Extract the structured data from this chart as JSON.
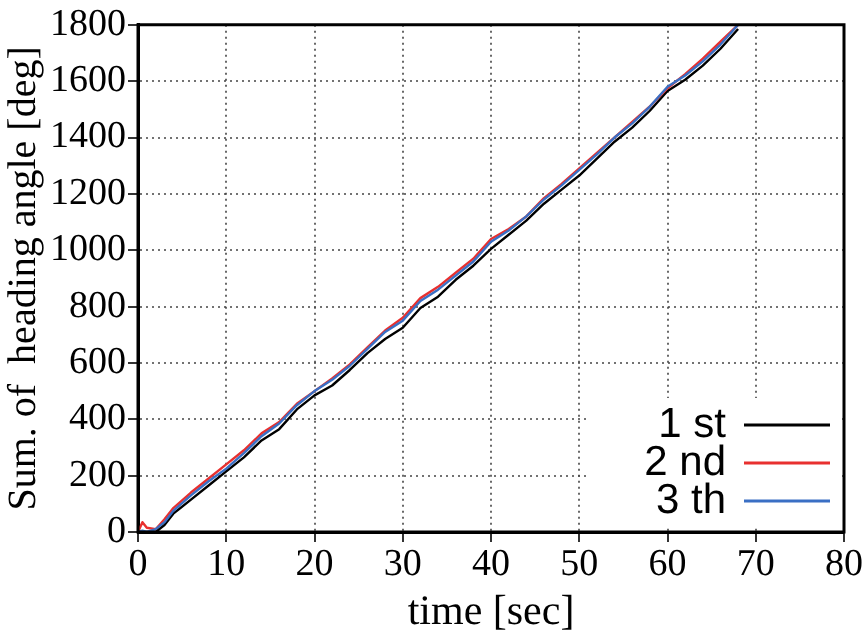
{
  "chart_data": {
    "type": "line",
    "xlabel": "time [sec]",
    "ylabel": "Sum. of  heading angle [deg]",
    "xlim": [
      0,
      80
    ],
    "ylim": [
      0,
      1800
    ],
    "xticks": [
      0,
      10,
      20,
      30,
      40,
      50,
      60,
      70,
      80
    ],
    "yticks": [
      0,
      200,
      400,
      600,
      800,
      1000,
      1200,
      1400,
      1600,
      1800
    ],
    "grid": true,
    "legend": "bottom right",
    "marker": "none",
    "line_style": "solid",
    "x": [
      0,
      0.5,
      1,
      2,
      3,
      4,
      6,
      8,
      10,
      12,
      14,
      16,
      18,
      20,
      22,
      24,
      26,
      28,
      30,
      32,
      34,
      36,
      38,
      40,
      42,
      44,
      46,
      48,
      50,
      52,
      54,
      56,
      58,
      60,
      62,
      64,
      66,
      68
    ],
    "series": [
      {
        "name": "1 st",
        "color": "#000000",
        "values": [
          0,
          0,
          0,
          0,
          25,
          65,
          115,
          165,
          215,
          265,
          325,
          365,
          435,
          485,
          520,
          575,
          635,
          685,
          725,
          795,
          835,
          895,
          945,
          1005,
          1055,
          1105,
          1165,
          1215,
          1265,
          1325,
          1385,
          1435,
          1495,
          1565,
          1605,
          1655,
          1715,
          1785
        ]
      },
      {
        "name": "2 nd",
        "color": "#e8302f",
        "values": [
          0,
          35,
          15,
          10,
          45,
          85,
          140,
          190,
          240,
          290,
          350,
          390,
          455,
          500,
          545,
          595,
          655,
          715,
          760,
          830,
          870,
          920,
          970,
          1040,
          1075,
          1120,
          1185,
          1235,
          1290,
          1345,
          1400,
          1455,
          1510,
          1575,
          1625,
          1680,
          1740,
          1800
        ]
      },
      {
        "name": "3 th",
        "color": "#3a6fc4",
        "values": [
          0,
          5,
          0,
          10,
          35,
          75,
          130,
          180,
          225,
          280,
          340,
          385,
          450,
          500,
          540,
          590,
          650,
          710,
          750,
          820,
          860,
          910,
          960,
          1030,
          1070,
          1120,
          1180,
          1230,
          1285,
          1340,
          1400,
          1450,
          1510,
          1580,
          1620,
          1670,
          1730,
          1800
        ]
      }
    ]
  }
}
